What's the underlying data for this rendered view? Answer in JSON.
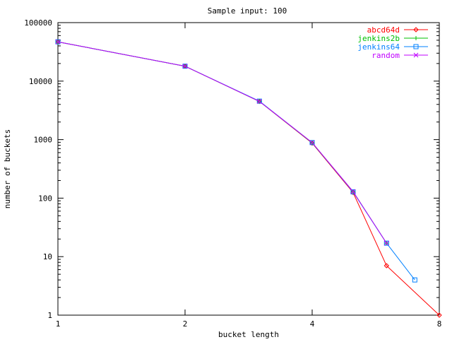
{
  "chart_data": {
    "type": "line",
    "title": "Sample input: 100",
    "xlabel": "bucket length",
    "ylabel": "number of buckets",
    "xscale": "log2",
    "yscale": "log10",
    "xlim": [
      1,
      8
    ],
    "ylim": [
      1,
      100000
    ],
    "x_ticks": [
      1,
      2,
      4,
      8
    ],
    "x_tick_labels": [
      "1",
      "2",
      "4",
      "8"
    ],
    "y_ticks": [
      1,
      10,
      100,
      1000,
      10000,
      100000
    ],
    "y_tick_labels": [
      "1",
      "10",
      "100",
      "1000",
      "10000",
      "100000"
    ],
    "grid": false,
    "legend_position": "top-right",
    "series": [
      {
        "name": "abcd64d",
        "color": "#ff0000",
        "marker": "diamond",
        "x": [
          1,
          2,
          3,
          4,
          5,
          6,
          8
        ],
        "y": [
          47000,
          18000,
          4500,
          870,
          125,
          7,
          1
        ]
      },
      {
        "name": "jenkins2b",
        "color": "#00c000",
        "marker": "plus",
        "x": [
          1,
          2,
          3,
          4,
          5,
          6
        ],
        "y": [
          47000,
          18000,
          4500,
          880,
          130,
          17
        ]
      },
      {
        "name": "jenkins64",
        "color": "#0080ff",
        "marker": "square",
        "x": [
          1,
          2,
          3,
          4,
          5,
          6,
          7
        ],
        "y": [
          47000,
          18000,
          4550,
          890,
          128,
          17,
          4
        ]
      },
      {
        "name": "random",
        "color": "#c000ff",
        "marker": "cross",
        "x": [
          1,
          2,
          3,
          4,
          5,
          6
        ],
        "y": [
          47000,
          18000,
          4500,
          890,
          130,
          17
        ]
      }
    ]
  }
}
